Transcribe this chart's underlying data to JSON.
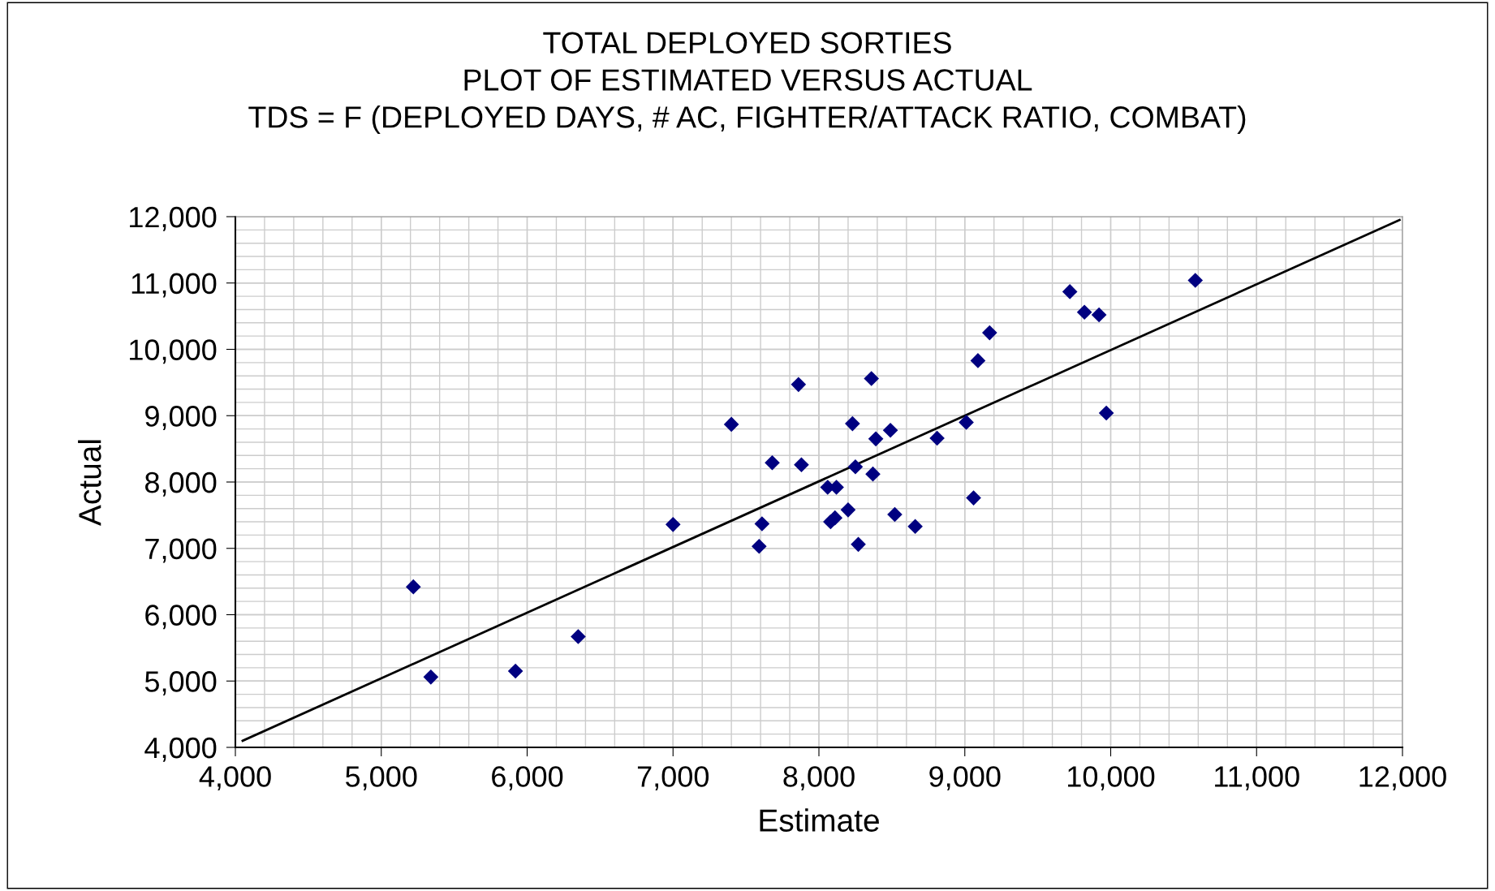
{
  "chart_data": {
    "type": "scatter",
    "title": "TOTAL DEPLOYED SORTIES\nPLOT OF ESTIMATED VERSUS ACTUAL\nTDS = F (DEPLOYED DAYS, # AC, FIGHTER/ATTACK RATIO, COMBAT)",
    "xlabel": "Estimate",
    "ylabel": "Actual",
    "xlim": [
      4000,
      12000
    ],
    "ylim": [
      4000,
      12000
    ],
    "xticks": [
      {
        "value": 4000,
        "label": "4,000"
      },
      {
        "value": 5000,
        "label": "5,000"
      },
      {
        "value": 6000,
        "label": "6,000"
      },
      {
        "value": 7000,
        "label": "7,000"
      },
      {
        "value": 8000,
        "label": "8,000"
      },
      {
        "value": 9000,
        "label": "9,000"
      },
      {
        "value": 10000,
        "label": "10,000"
      },
      {
        "value": 11000,
        "label": "11,000"
      },
      {
        "value": 12000,
        "label": "12,000"
      }
    ],
    "yticks": [
      {
        "value": 4000,
        "label": "4,000"
      },
      {
        "value": 5000,
        "label": "5,000"
      },
      {
        "value": 6000,
        "label": "6,000"
      },
      {
        "value": 7000,
        "label": "7,000"
      },
      {
        "value": 8000,
        "label": "8,000"
      },
      {
        "value": 9000,
        "label": "9,000"
      },
      {
        "value": 10000,
        "label": "10,000"
      },
      {
        "value": 11000,
        "label": "11,000"
      },
      {
        "value": 12000,
        "label": "12,000"
      }
    ],
    "grid": true,
    "series": [
      {
        "marker": "diamond",
        "color": "#000080",
        "x": [
          5220,
          5340,
          5920,
          6350,
          7000,
          7400,
          7590,
          7610,
          7680,
          7860,
          7880,
          8060,
          8080,
          8120,
          8110,
          8200,
          8230,
          8250,
          8270,
          8360,
          8370,
          8390,
          8490,
          8520,
          8660,
          8810,
          9010,
          9060,
          9090,
          9170,
          9720,
          9820,
          9920,
          9970,
          10580
        ],
        "values": [
          6420,
          5060,
          5150,
          5670,
          7360,
          8870,
          7030,
          7370,
          8290,
          9470,
          8260,
          7920,
          7400,
          7920,
          7460,
          7580,
          8880,
          8230,
          7060,
          9560,
          8120,
          8650,
          8780,
          7510,
          7330,
          8660,
          8900,
          7760,
          9830,
          10250,
          10870,
          10560,
          10520,
          9040,
          11040
        ]
      },
      {
        "type": "line",
        "color": "#000000",
        "x": [
          4050,
          11980
        ],
        "values": [
          4100,
          11950
        ]
      }
    ]
  }
}
